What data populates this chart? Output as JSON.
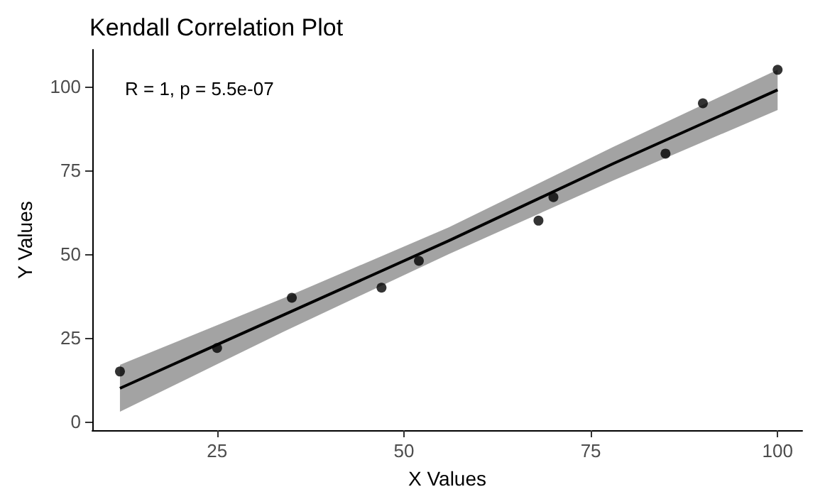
{
  "chart_data": {
    "type": "scatter",
    "title": "Kendall Correlation Plot",
    "xlabel": "X Values",
    "ylabel": "Y Values",
    "annotations": [
      "R = 1, p = 5.5e-07"
    ],
    "series": [
      {
        "type": "scatter",
        "color": "#000000",
        "marker": "circle",
        "x": [
          12,
          25,
          35,
          47,
          52,
          68,
          70,
          85,
          90,
          100
        ],
        "values": [
          15,
          22,
          37,
          40,
          48,
          60,
          67,
          80,
          95,
          105
        ]
      },
      {
        "type": "line",
        "color": "#000000",
        "marker": "none",
        "line_style": "solid",
        "x": [
          12,
          34,
          56,
          78,
          100
        ],
        "values": [
          10,
          32,
          54,
          77,
          99
        ],
        "lower": [
          3,
          27,
          50,
          72,
          93
        ],
        "upper": [
          17,
          37,
          58,
          82,
          105
        ]
      }
    ],
    "xlim": [
      8.3,
      103.3
    ],
    "ylim": [
      -2.5,
      111
    ],
    "xticks": [
      25,
      50,
      75,
      100
    ],
    "yticks": [
      0,
      25,
      50,
      75,
      100
    ],
    "grid": false
  }
}
